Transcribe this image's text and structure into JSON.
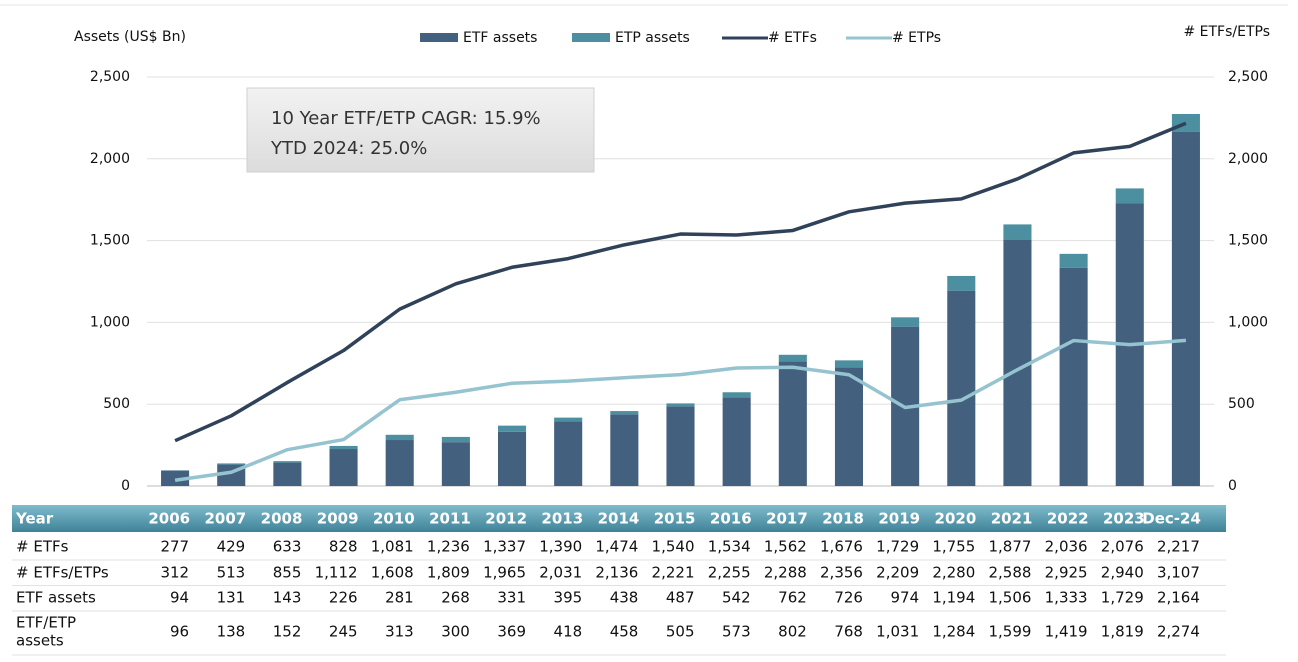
{
  "chart_data": {
    "type": "bar-line",
    "y_label": "Assets (US$ Bn)",
    "y2_label": "# ETFs/ETPs",
    "annotation": [
      "10 Year ETF/ETP CAGR: 15.9%",
      "YTD 2024: 25.0%"
    ],
    "categories": [
      "2006",
      "2007",
      "2008",
      "2009",
      "2010",
      "2011",
      "2012",
      "2013",
      "2014",
      "2015",
      "2016",
      "2017",
      "2018",
      "2019",
      "2020",
      "2021",
      "2022",
      "2023",
      "Dec-24"
    ],
    "series": [
      {
        "name": "ETF assets",
        "kind": "bar",
        "color": "#44607f",
        "values": [
          94,
          131,
          143,
          226,
          281,
          268,
          331,
          395,
          438,
          487,
          542,
          762,
          726,
          974,
          1194,
          1506,
          1333,
          1729,
          2164
        ]
      },
      {
        "name": "ETP assets",
        "kind": "bar",
        "color": "#4b8fa1",
        "values": [
          2,
          7,
          9,
          19,
          32,
          32,
          38,
          23,
          20,
          18,
          31,
          40,
          42,
          57,
          90,
          93,
          86,
          90,
          110
        ]
      },
      {
        "name": "# ETFs",
        "kind": "line",
        "axis": "y2",
        "color": "#2f4259",
        "values": [
          277,
          429,
          633,
          828,
          1081,
          1236,
          1337,
          1390,
          1474,
          1540,
          1534,
          1562,
          1676,
          1729,
          1755,
          1877,
          2036,
          2076,
          2217
        ]
      },
      {
        "name": "# ETPs",
        "kind": "line",
        "axis": "y2",
        "color": "#95c3cf",
        "values": [
          35,
          84,
          222,
          284,
          527,
          573,
          628,
          641,
          662,
          681,
          721,
          726,
          680,
          480,
          525,
          711,
          889,
          864,
          890
        ]
      }
    ],
    "stacked": true,
    "ylim": [
      0,
      2500
    ],
    "yticks": [
      0,
      500,
      {
        "value": 1000,
        "label": "1,000"
      },
      {
        "value": 1500,
        "label": "1,500"
      },
      {
        "value": 2000,
        "label": "2,000"
      },
      {
        "value": 2500,
        "label": "2,500"
      }
    ],
    "y2lim": [
      0,
      2500
    ],
    "y2ticks": [
      0,
      500,
      {
        "value": 1000,
        "label": "1,000"
      },
      {
        "value": 1500,
        "label": "1,500"
      },
      {
        "value": 2000,
        "label": "2,000"
      },
      {
        "value": 2500,
        "label": "2,500"
      }
    ],
    "grid": true
  },
  "table": {
    "header_label": "Year",
    "rows": [
      {
        "label": [
          "# ETFs"
        ],
        "values": [
          "277",
          "429",
          "633",
          "828",
          "1,081",
          "1,236",
          "1,337",
          "1,390",
          "1,474",
          "1,540",
          "1,534",
          "1,562",
          "1,676",
          "1,729",
          "1,755",
          "1,877",
          "2,036",
          "2,076",
          "2,217"
        ]
      },
      {
        "label": [
          "# ETFs/ETPs"
        ],
        "values": [
          "312",
          "513",
          "855",
          "1,112",
          "1,608",
          "1,809",
          "1,965",
          "2,031",
          "2,136",
          "2,221",
          "2,255",
          "2,288",
          "2,356",
          "2,209",
          "2,280",
          "2,588",
          "2,925",
          "2,940",
          "3,107"
        ]
      },
      {
        "label": [
          "ETF assets"
        ],
        "values": [
          "94",
          "131",
          "143",
          "226",
          "281",
          "268",
          "331",
          "395",
          "438",
          "487",
          "542",
          "762",
          "726",
          "974",
          "1,194",
          "1,506",
          "1,333",
          "1,729",
          "2,164"
        ]
      },
      {
        "label": [
          "ETF/ETP",
          "assets"
        ],
        "values": [
          "96",
          "138",
          "152",
          "245",
          "313",
          "300",
          "369",
          "418",
          "458",
          "505",
          "573",
          "802",
          "768",
          "1,031",
          "1,284",
          "1,599",
          "1,419",
          "1,819",
          "2,274"
        ]
      }
    ]
  }
}
